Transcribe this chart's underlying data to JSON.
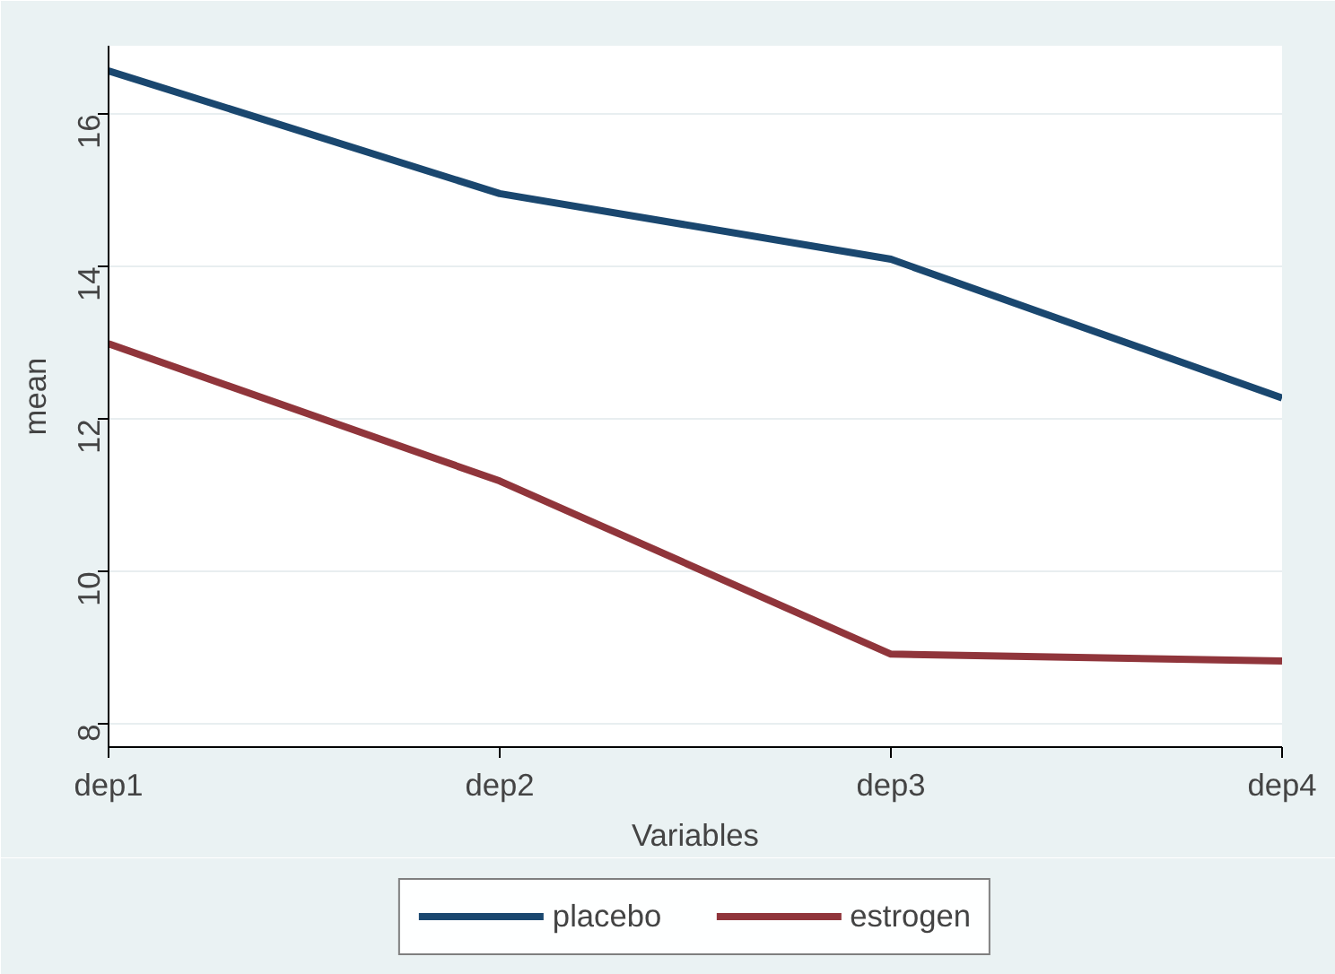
{
  "chart_data": {
    "type": "line",
    "xlabel": "Variables",
    "ylabel": "mean",
    "categories": [
      "dep1",
      "dep2",
      "dep3",
      "dep4"
    ],
    "series": [
      {
        "name": "placebo",
        "color": "#1a476f",
        "values": [
          16.57,
          14.96,
          14.1,
          12.28
        ]
      },
      {
        "name": "estrogen",
        "color": "#90353b",
        "values": [
          12.99,
          11.19,
          8.92,
          8.83
        ]
      }
    ],
    "ylim": [
      7.7,
      16.9
    ],
    "yticks": [
      8,
      10,
      12,
      14,
      16
    ],
    "grid": "y",
    "legend": "bottom",
    "line_style": "solid"
  }
}
